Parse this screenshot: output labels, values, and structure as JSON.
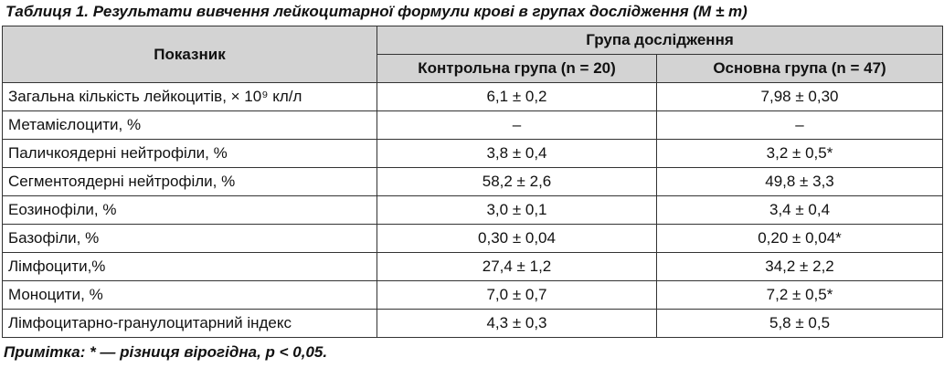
{
  "title": "Таблиця 1. Результати вивчення лейкоцитарної формули крові в групах дослідження (M ± m)",
  "table": {
    "header": {
      "indicator": "Показник",
      "group": "Група дослідження",
      "subgroups": [
        "Контрольна група (n = 20)",
        "Основна група (n = 47)"
      ]
    },
    "rows": [
      [
        "Загальна кількість лейкоцитів, × 10⁹ кл/л",
        "6,1 ± 0,2",
        "7,98 ± 0,30"
      ],
      [
        "Метамієлоцити, %",
        "–",
        "–"
      ],
      [
        "Паличкоядерні нейтрофіли, %",
        "3,8 ± 0,4",
        "3,2 ± 0,5*"
      ],
      [
        "Сегментоядерні нейтрофіли, %",
        "58,2 ± 2,6",
        "49,8 ± 3,3"
      ],
      [
        "Еозинофіли, %",
        "3,0 ± 0,1",
        "3,4 ± 0,4"
      ],
      [
        "Базофіли, %",
        "0,30 ± 0,04",
        "0,20 ± 0,04*"
      ],
      [
        "Лімфоцити,%",
        "27,4 ± 1,2",
        "34,2 ± 2,2"
      ],
      [
        "Моноцити, %",
        "7,0 ± 0,7",
        "7,2 ± 0,5*"
      ],
      [
        "Лімфоцитарно-гранулоцитарний індекс",
        "4,3 ± 0,3",
        "5,8 ± 0,5"
      ]
    ]
  },
  "note": "Примітка: * — різниця вірогідна, p < 0,05."
}
